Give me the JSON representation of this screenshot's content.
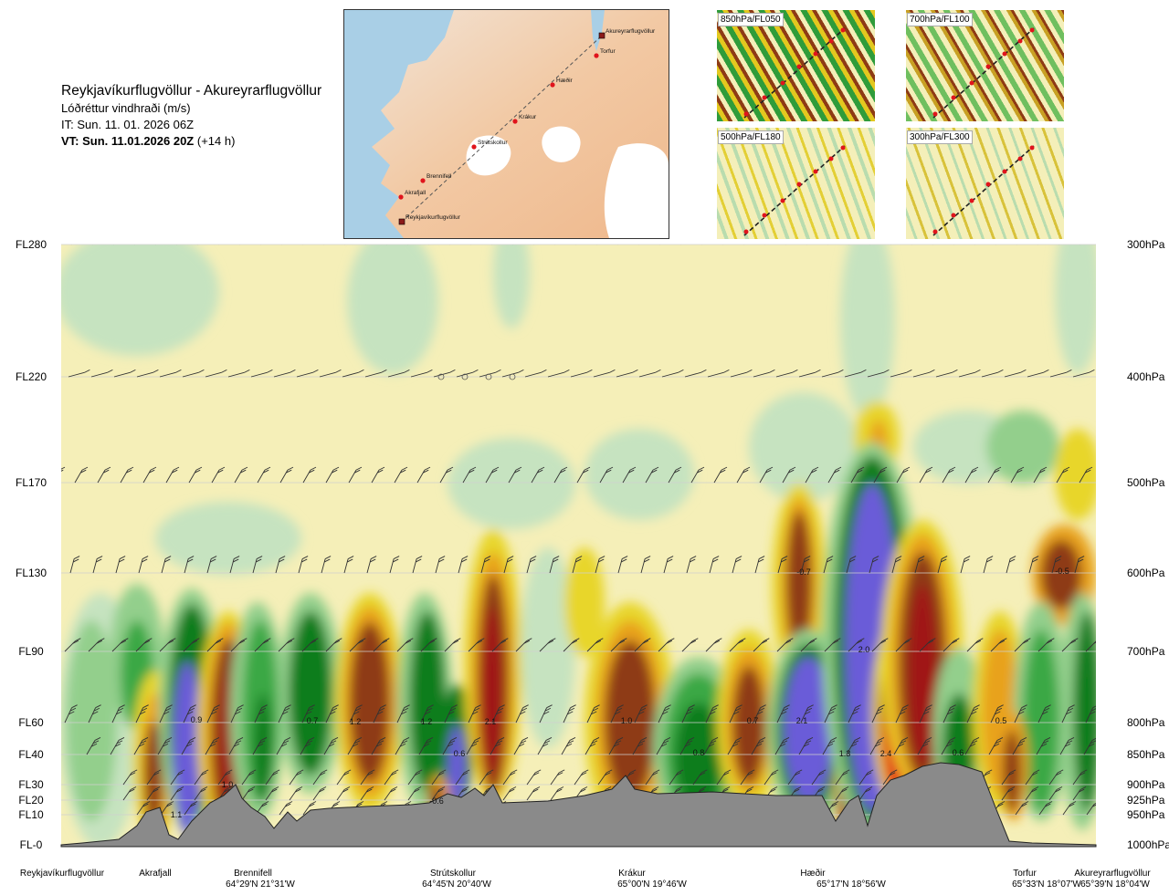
{
  "title": {
    "route": "Reykjavíkurflugvöllur - Akureyrarflugvöllur",
    "variable": "Lóðréttur vindhraði (m/s)",
    "it": "IT: Sun. 11. 01. 2026 06Z",
    "vt_bold": "VT: Sun. 11.01.2026 20Z",
    "vt_lead": "(+14 h)"
  },
  "map": {
    "waypoints": [
      {
        "name": "Akureyrarflugvöllur",
        "kind": "airport"
      },
      {
        "name": "Torfur",
        "kind": "point"
      },
      {
        "name": "Hæðir",
        "kind": "point"
      },
      {
        "name": "Krákur",
        "kind": "point"
      },
      {
        "name": "Strútskollur",
        "kind": "point"
      },
      {
        "name": "Brennifell",
        "kind": "point"
      },
      {
        "name": "Akrafjall",
        "kind": "point"
      },
      {
        "name": "Reykjavíkurflugvöllur",
        "kind": "airport"
      }
    ]
  },
  "thumbnails": [
    {
      "label": "850hPa/FL050"
    },
    {
      "label": "700hPa/FL100"
    },
    {
      "label": "500hPa/FL180"
    },
    {
      "label": "300hPa/FL300"
    }
  ],
  "chart_data": {
    "type": "heatmap",
    "levels": [
      {
        "fl": "FL280",
        "hpa": "300hPa"
      },
      {
        "fl": "FL220",
        "hpa": "400hPa"
      },
      {
        "fl": "FL170",
        "hpa": "500hPa"
      },
      {
        "fl": "FL130",
        "hpa": "600hPa"
      },
      {
        "fl": "FL90",
        "hpa": "700hPa"
      },
      {
        "fl": "FL60",
        "hpa": "800hPa"
      },
      {
        "fl": "FL40",
        "hpa": "850hPa"
      },
      {
        "fl": "FL30",
        "hpa": "900hPa"
      },
      {
        "fl": "FL20",
        "hpa": "925hPa"
      },
      {
        "fl": "FL10",
        "hpa": "950hPa"
      },
      {
        "fl": "FL-0",
        "hpa": "1000hPa"
      }
    ],
    "stations": [
      {
        "name": "Reykjavíkurflugvöllur",
        "coord": ""
      },
      {
        "name": "Akrafjall",
        "coord": ""
      },
      {
        "name": "Brennifell",
        "coord": "64°29'N 21°31'W"
      },
      {
        "name": "Strútskollur",
        "coord": "64°45'N 20°40'W"
      },
      {
        "name": "Krákur",
        "coord": "65°00'N 19°46'W"
      },
      {
        "name": "Hæðir",
        "coord": "65°17'N 18°56'W"
      },
      {
        "name": "Torfur",
        "coord": "65°33'N 18°07'W"
      },
      {
        "name": "Akureyrarflugvöllur",
        "coord": "65°39'N 18°04'W"
      }
    ],
    "value_labels": [
      "1.1",
      "0.9",
      "1.0",
      "0.7",
      "1.2",
      "0.6",
      "1.2",
      "2.1",
      "-0.6",
      "1.0",
      "0.8",
      "0.7",
      "2.1",
      "1.3",
      "2.4",
      "2.0",
      "-0.7",
      "0.6",
      "0.5",
      "-0.5"
    ],
    "palette": {
      "strong_up_blue": "#6a5cd8",
      "up_dark_green": "#0b7d1c",
      "up_green": "#3aa845",
      "up_light_green": "#93cf8c",
      "up_pale_green": "#c6e3c0",
      "near_zero": "#f5efb8",
      "down_yellow": "#e8d62a",
      "down_orange": "#e8a21d",
      "down_brown": "#8e3b15",
      "down_red": "#a01414",
      "strong_down_red": "#e31b1b",
      "terrain": "#8a8a8a"
    }
  }
}
